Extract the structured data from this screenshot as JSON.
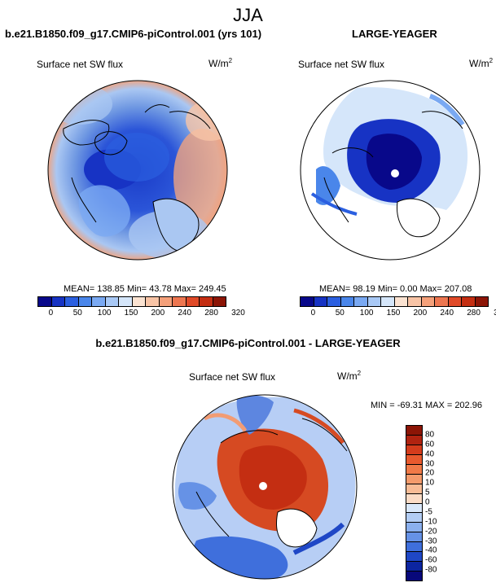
{
  "figure": {
    "title": "JJA",
    "panel1": {
      "title": "b.e21.B1850.f09_g17.CMIP6-piControl.001 (yrs 101)",
      "var_label": "Surface net SW flux",
      "units": "W/m",
      "units_sup": "2",
      "stats": "MEAN= 138.85  Min=  43.78  Max= 249.45"
    },
    "panel2": {
      "title": "LARGE-YEAGER",
      "var_label": "Surface net SW flux",
      "units": "W/m",
      "units_sup": "2",
      "stats": "MEAN=  98.19  Min=   0.00  Max= 207.08"
    },
    "panel3": {
      "title": "b.e21.B1850.f09_g17.CMIP6-piControl.001 - LARGE-YEAGER",
      "var_label": "Surface net SW flux",
      "units": "W/m",
      "units_sup": "2",
      "stats": "MIN = -69.31 MAX = 202.96"
    }
  },
  "colorbar_abs": {
    "ticks": [
      "0",
      "50",
      "100",
      "150",
      "200",
      "240",
      "280",
      "320"
    ],
    "colors": [
      "#08088a",
      "#1733c4",
      "#2b5fe0",
      "#4a86ea",
      "#7aa9f2",
      "#a9c9f6",
      "#d5e6fa",
      "#fbe3d2",
      "#f8c4a6",
      "#f4a07a",
      "#ed7650",
      "#e04a28",
      "#c42e12",
      "#8c1506"
    ]
  },
  "colorbar_diff": {
    "ticks": [
      "80",
      "60",
      "40",
      "30",
      "20",
      "10",
      "5",
      "0",
      "-5",
      "-10",
      "-20",
      "-30",
      "-40",
      "-60",
      "-80"
    ],
    "colors": [
      "#8c1506",
      "#b02310",
      "#d43c1c",
      "#e85a2e",
      "#f07a48",
      "#f49b6c",
      "#f8bc96",
      "#fbdcc6",
      "#d9e8fa",
      "#b3cdf4",
      "#8bb0ee",
      "#6692e6",
      "#3f6fdc",
      "#1f47c6",
      "#0c25a0",
      "#08087a"
    ]
  },
  "map_colors": {
    "ocean_bg": "#6f98e2",
    "abs_high": "#f0a37f",
    "abs_mid": "#aac7f2",
    "abs_low": "#2b55d8",
    "abs_core": "#1a3bc8",
    "land": "#ffffff",
    "diff_pos": "#d64a22",
    "diff_pos_light": "#f29c74",
    "diff_neg": "#5d86e0",
    "diff_neg_light": "#b7cef5"
  }
}
